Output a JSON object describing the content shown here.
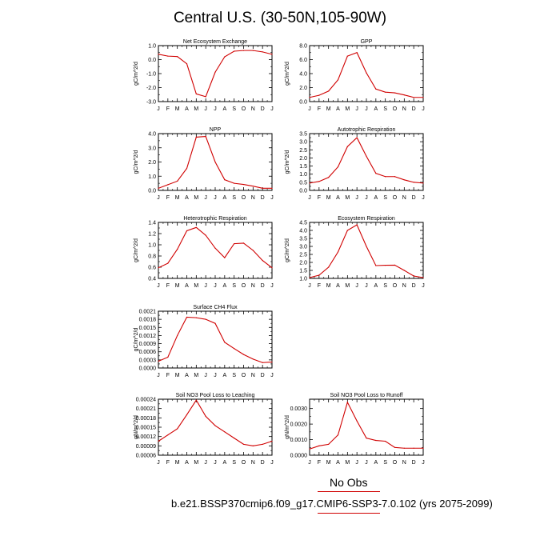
{
  "title": "Central U.S. (30-50N,105-90W)",
  "legend": {
    "main": "No Obs",
    "sub": "b.e21.BSSP370cmip6.f09_g17.CMIP6-SSP3-7.0.102 (yrs 2075-2099)",
    "line_color": "#d00000"
  },
  "chart_data": [
    {
      "type": "line",
      "title": "Net Ecosystem Exchange",
      "ylabel": "gC/m^2/d",
      "categories": [
        "J",
        "F",
        "M",
        "A",
        "M",
        "J",
        "J",
        "A",
        "S",
        "O",
        "N",
        "D",
        "J"
      ],
      "values": [
        0.38,
        0.25,
        0.22,
        -0.3,
        -2.45,
        -2.65,
        -0.9,
        0.2,
        0.6,
        0.65,
        0.65,
        0.55,
        0.38
      ],
      "ylim": [
        -3.0,
        1.0
      ],
      "yticks": [
        "-3.0",
        "-2.0",
        "-1.0",
        "0.0",
        "1.0"
      ],
      "color": "#d00000"
    },
    {
      "type": "line",
      "title": "GPP",
      "ylabel": "gC/m^2/d",
      "categories": [
        "J",
        "F",
        "M",
        "A",
        "M",
        "J",
        "J",
        "A",
        "S",
        "O",
        "N",
        "D",
        "J"
      ],
      "values": [
        0.6,
        0.9,
        1.5,
        3.1,
        6.5,
        7.0,
        4.1,
        1.8,
        1.35,
        1.25,
        0.95,
        0.6,
        0.6
      ],
      "ylim": [
        0.0,
        8.0
      ],
      "yticks": [
        "0.0",
        "2.0",
        "4.0",
        "6.0",
        "8.0"
      ],
      "color": "#d00000"
    },
    {
      "type": "line",
      "title": "NPP",
      "ylabel": "gC/m^2/d",
      "categories": [
        "J",
        "F",
        "M",
        "A",
        "M",
        "J",
        "J",
        "A",
        "S",
        "O",
        "N",
        "D",
        "J"
      ],
      "values": [
        0.15,
        0.4,
        0.65,
        1.55,
        3.75,
        3.8,
        2.0,
        0.75,
        0.5,
        0.42,
        0.3,
        0.15,
        0.15
      ],
      "ylim": [
        0.0,
        4.0
      ],
      "yticks": [
        "0.0",
        "1.0",
        "2.0",
        "3.0",
        "4.0"
      ],
      "color": "#d00000"
    },
    {
      "type": "line",
      "title": "Autotrophic Respiration",
      "ylabel": "gC/m^2/d",
      "categories": [
        "J",
        "F",
        "M",
        "A",
        "M",
        "J",
        "J",
        "A",
        "S",
        "O",
        "N",
        "D",
        "J"
      ],
      "values": [
        0.45,
        0.55,
        0.8,
        1.45,
        2.7,
        3.25,
        2.1,
        1.05,
        0.85,
        0.85,
        0.65,
        0.5,
        0.45
      ],
      "ylim": [
        0.0,
        3.5
      ],
      "yticks": [
        "0.0",
        "0.5",
        "1.0",
        "1.5",
        "2.0",
        "2.5",
        "3.0",
        "3.5"
      ],
      "color": "#d00000"
    },
    {
      "type": "line",
      "title": "Heterotrophic Respiration",
      "ylabel": "gC/m^2/d",
      "categories": [
        "J",
        "F",
        "M",
        "A",
        "M",
        "J",
        "J",
        "A",
        "S",
        "O",
        "N",
        "D",
        "J"
      ],
      "values": [
        0.59,
        0.67,
        0.92,
        1.25,
        1.31,
        1.17,
        0.94,
        0.77,
        1.02,
        1.03,
        0.9,
        0.72,
        0.59
      ],
      "ylim": [
        0.4,
        1.4
      ],
      "yticks": [
        "0.4",
        "0.6",
        "0.8",
        "1.0",
        "1.2",
        "1.4"
      ],
      "color": "#d00000"
    },
    {
      "type": "line",
      "title": "Ecosystem Respiration",
      "ylabel": "gC/m^2/d",
      "categories": [
        "J",
        "F",
        "M",
        "A",
        "M",
        "J",
        "J",
        "A",
        "S",
        "O",
        "N",
        "D",
        "J"
      ],
      "values": [
        1.05,
        1.2,
        1.7,
        2.65,
        4.0,
        4.35,
        3.0,
        1.8,
        1.82,
        1.83,
        1.5,
        1.15,
        1.05
      ],
      "ylim": [
        1.0,
        4.5
      ],
      "yticks": [
        "1.0",
        "1.5",
        "2.0",
        "2.5",
        "3.0",
        "3.5",
        "4.0",
        "4.5"
      ],
      "color": "#d00000"
    },
    {
      "type": "line",
      "title": "Surface CH4 Flux",
      "ylabel": "gC/m^2/d",
      "categories": [
        "J",
        "F",
        "M",
        "A",
        "M",
        "J",
        "J",
        "A",
        "S",
        "O",
        "N",
        "D",
        "J"
      ],
      "values": [
        0.00025,
        0.0004,
        0.0012,
        0.00188,
        0.00186,
        0.0018,
        0.00165,
        0.00095,
        0.00072,
        0.0005,
        0.00033,
        0.0002,
        0.00022
      ],
      "ylim": [
        0.0,
        0.0021
      ],
      "yticks": [
        "0.0000",
        "0.0003",
        "0.0006",
        "0.0009",
        "0.0012",
        "0.0015",
        "0.0018",
        "0.0021"
      ],
      "color": "#d00000"
    },
    null,
    {
      "type": "line",
      "title": "Soil NO3 Pool Loss to Leaching",
      "ylabel": "gN/m^2/d",
      "categories": [
        "J",
        "F",
        "M",
        "A",
        "M",
        "J",
        "J",
        "A",
        "S",
        "O",
        "N",
        "D",
        "J"
      ],
      "values": [
        0.000105,
        0.000125,
        0.000145,
        0.00019,
        0.000237,
        0.000185,
        0.000155,
        0.000135,
        0.000115,
        9.5e-05,
        9e-05,
        9.5e-05,
        0.000105
      ],
      "ylim": [
        6e-05,
        0.00024
      ],
      "yticks": [
        "0.00006",
        "0.00009",
        "0.00012",
        "0.00015",
        "0.00018",
        "0.00021",
        "0.00024"
      ],
      "color": "#d00000"
    },
    {
      "type": "line",
      "title": "Soil NO3 Pool Loss to Runoff",
      "ylabel": "gN/m^2/d",
      "categories": [
        "J",
        "F",
        "M",
        "A",
        "M",
        "J",
        "J",
        "A",
        "S",
        "O",
        "N",
        "D",
        "J"
      ],
      "values": [
        0.0004,
        0.0006,
        0.0007,
        0.0013,
        0.0034,
        0.0022,
        0.0011,
        0.00095,
        0.0009,
        0.0005,
        0.00045,
        0.00045,
        0.00045
      ],
      "ylim": [
        0.0,
        0.0036
      ],
      "yticks": [
        "0.0000",
        "0.0010",
        "0.0020",
        "0.0030"
      ],
      "yticks_at": [
        0.0,
        0.001,
        0.002,
        0.003
      ],
      "color": "#d00000"
    }
  ]
}
